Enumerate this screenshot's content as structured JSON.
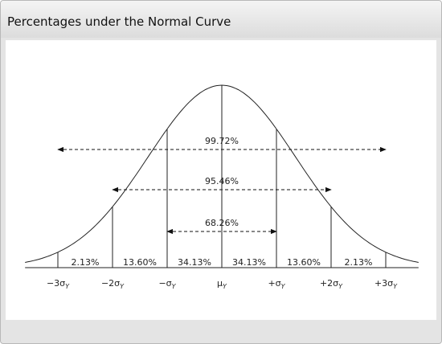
{
  "header": {
    "title": "Percentages under the Normal Curve"
  },
  "diagram": {
    "regions": [
      "2.13%",
      "13.60%",
      "34.13%",
      "34.13%",
      "13.60%",
      "2.13%"
    ],
    "spans": [
      {
        "label": "99.72%",
        "from": -3,
        "to": 3
      },
      {
        "label": "95.46%",
        "from": -2,
        "to": 2
      },
      {
        "label": "68.26%",
        "from": -1,
        "to": 1
      }
    ],
    "axis_labels": [
      {
        "text": "−3σ",
        "sub": "Y"
      },
      {
        "text": "−2σ",
        "sub": "Y"
      },
      {
        "text": "−σ",
        "sub": "Y"
      },
      {
        "text": "μ",
        "sub": "Y"
      },
      {
        "text": "+σ",
        "sub": "Y"
      },
      {
        "text": "+2σ",
        "sub": "Y"
      },
      {
        "text": "+3σ",
        "sub": "Y"
      }
    ]
  }
}
